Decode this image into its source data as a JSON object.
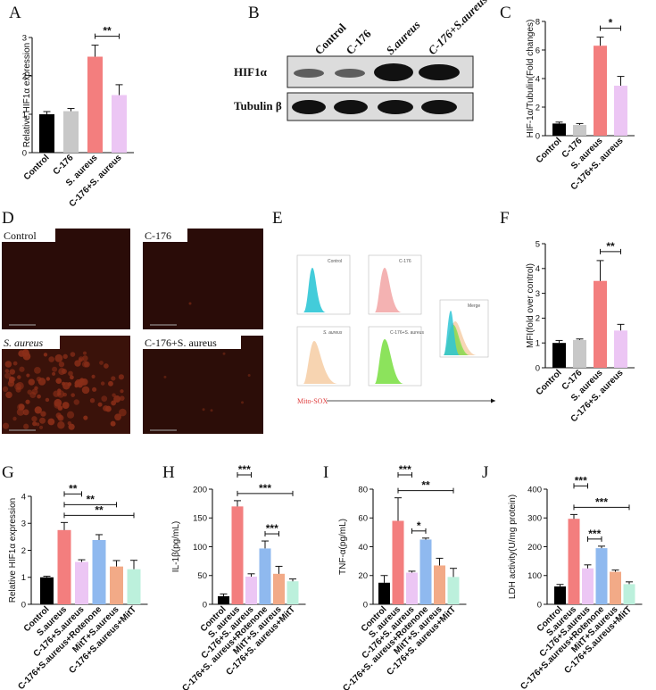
{
  "panel_letters": {
    "A": "A",
    "B": "B",
    "C": "C",
    "D": "D",
    "E": "E",
    "F": "F",
    "G": "G",
    "H": "H",
    "I": "I",
    "J": "J"
  },
  "colors": {
    "black": "#000000",
    "grey": "#c8c8c8",
    "red": "#f37e7e",
    "pink": "#ecc6f4",
    "blue": "#8fb9ef",
    "orange": "#f2aa87",
    "mint": "#bcf0dc"
  },
  "blot": {
    "columns": [
      "Control",
      "C-176",
      "S.aureus",
      "C-176+S.aureus"
    ],
    "rows": [
      "HIF1α",
      "Tubulin β"
    ]
  },
  "micro": {
    "panels": [
      {
        "label": "Control",
        "italic": false
      },
      {
        "label": "C-176",
        "italic": false
      },
      {
        "label": "S. aureus",
        "italic": true
      },
      {
        "label": "C-176+S. aureus",
        "italic": false
      }
    ]
  },
  "flow": {
    "panels": [
      "Control",
      "C-176",
      "S. aureus",
      "C-176+S. aureus",
      "Merge"
    ],
    "marker": "Mito-SOX"
  },
  "chart_data": [
    {
      "id": "A",
      "type": "bar",
      "ylabel": "Relative HIF1α expression",
      "ylim": [
        0,
        3
      ],
      "yticks": [
        0,
        1,
        2,
        3
      ],
      "categories": [
        "Control",
        "C-176",
        "S. aureus",
        "C-176+S. aureus"
      ],
      "values": [
        1.0,
        1.08,
        2.5,
        1.5
      ],
      "errors": [
        0.07,
        0.07,
        0.3,
        0.27
      ],
      "colors": [
        "black",
        "grey",
        "red",
        "pink"
      ],
      "significance": [
        {
          "from": 2,
          "to": 3,
          "label": "**"
        }
      ]
    },
    {
      "id": "C",
      "type": "bar",
      "ylabel": "HIF-1α/Tubulin(Fold changes)",
      "ylim": [
        0,
        8
      ],
      "yticks": [
        0,
        2,
        4,
        6,
        8
      ],
      "categories": [
        "Control",
        "C-176",
        "S. aureus",
        "C-176+S. aureus"
      ],
      "values": [
        0.85,
        0.75,
        6.3,
        3.5
      ],
      "errors": [
        0.1,
        0.1,
        0.6,
        0.65
      ],
      "colors": [
        "black",
        "grey",
        "red",
        "pink"
      ],
      "significance": [
        {
          "from": 2,
          "to": 3,
          "label": "*"
        }
      ]
    },
    {
      "id": "F",
      "type": "bar",
      "ylabel": "MFI(fold over control)",
      "ylim": [
        0,
        5
      ],
      "yticks": [
        0,
        1,
        2,
        3,
        4,
        5
      ],
      "categories": [
        "Control",
        "C-176",
        "S. aureus",
        "C-176+S. aureus"
      ],
      "values": [
        1.0,
        1.12,
        3.5,
        1.5
      ],
      "errors": [
        0.1,
        0.04,
        0.82,
        0.25
      ],
      "colors": [
        "black",
        "grey",
        "red",
        "pink"
      ],
      "significance": [
        {
          "from": 2,
          "to": 3,
          "label": "**"
        }
      ]
    },
    {
      "id": "G",
      "type": "bar",
      "ylabel": "Relative HIF1α expression",
      "ylim": [
        0,
        4
      ],
      "yticks": [
        0,
        1,
        2,
        3,
        4
      ],
      "categories": [
        "Control",
        "S.aureus",
        "C-176+S.aureus",
        "C-176+S.aureus+Rotenone",
        "MitT+S.aureus",
        "C-176+S.aureus+MitT"
      ],
      "values": [
        1.0,
        2.75,
        1.57,
        2.38,
        1.4,
        1.3
      ],
      "errors": [
        0.04,
        0.28,
        0.08,
        0.2,
        0.22,
        0.33
      ],
      "colors": [
        "black",
        "red",
        "pink",
        "blue",
        "orange",
        "mint"
      ],
      "significance": [
        {
          "from": 1,
          "to": 2,
          "label": "**"
        },
        {
          "from": 1,
          "to": 4,
          "label": "**"
        },
        {
          "from": 1,
          "to": 5,
          "label": "**"
        }
      ]
    },
    {
      "id": "H",
      "type": "bar",
      "ylabel": "IL-1β(pg/mL)",
      "ylim": [
        0,
        200
      ],
      "yticks": [
        0,
        50,
        100,
        150,
        200
      ],
      "categories": [
        "Control",
        "S. aureus",
        "C-176+S. aureus",
        "C-176+S. aureus+Rotenone",
        "MitT+S. aureus",
        "C-176+S. aureus+MitT"
      ],
      "values": [
        14,
        170,
        48,
        97,
        53,
        40
      ],
      "errors": [
        4,
        10,
        5,
        13,
        13,
        4
      ],
      "colors": [
        "black",
        "red",
        "pink",
        "blue",
        "orange",
        "mint"
      ],
      "significance": [
        {
          "from": 1,
          "to": 2,
          "label": "***"
        },
        {
          "from": 3,
          "to": 4,
          "label": "***"
        },
        {
          "from": 1,
          "to": 5,
          "label": "***"
        }
      ]
    },
    {
      "id": "I",
      "type": "bar",
      "ylabel": "TNF-α(pg/mL)",
      "ylim": [
        0,
        80
      ],
      "yticks": [
        0,
        20,
        40,
        60,
        80
      ],
      "categories": [
        "Control",
        "S. aureus",
        "C-176+S. aureus",
        "C-176+S. aureus+Rotenone",
        "MitT+S. aureus",
        "C-176+S. aureus+MitT"
      ],
      "values": [
        15,
        58,
        22,
        45,
        27,
        19
      ],
      "errors": [
        5,
        16,
        1,
        1,
        5,
        6
      ],
      "colors": [
        "black",
        "red",
        "pink",
        "blue",
        "orange",
        "mint"
      ],
      "significance": [
        {
          "from": 1,
          "to": 2,
          "label": "***"
        },
        {
          "from": 2,
          "to": 3,
          "label": "*"
        },
        {
          "from": 1,
          "to": 5,
          "label": "**"
        }
      ]
    },
    {
      "id": "J",
      "type": "bar",
      "ylabel": "LDH activity(U/mg protein)",
      "ylim": [
        0,
        400
      ],
      "yticks": [
        0,
        100,
        200,
        300,
        400
      ],
      "categories": [
        "Control",
        "S.aureus",
        "C-176+S.aureus",
        "C-176+S.aureus+Rotenone",
        "MitT+S.aureus",
        "C-176+S.aureus+MitT"
      ],
      "values": [
        62,
        297,
        125,
        195,
        113,
        70
      ],
      "errors": [
        7,
        15,
        12,
        7,
        6,
        8
      ],
      "colors": [
        "black",
        "red",
        "pink",
        "blue",
        "orange",
        "mint"
      ],
      "significance": [
        {
          "from": 1,
          "to": 2,
          "label": "***"
        },
        {
          "from": 2,
          "to": 3,
          "label": "***"
        },
        {
          "from": 1,
          "to": 5,
          "label": "***"
        }
      ]
    }
  ]
}
